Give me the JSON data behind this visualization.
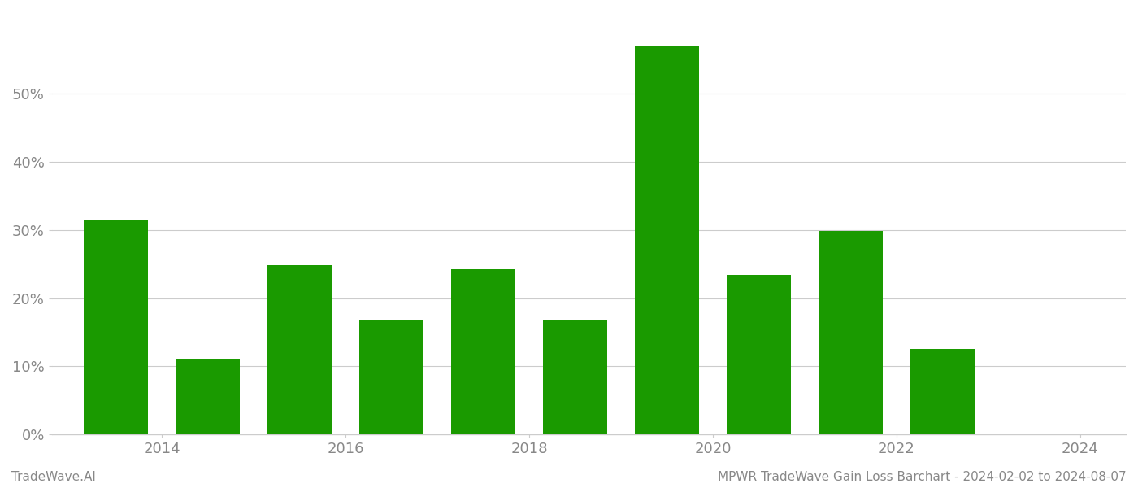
{
  "bar_positions": [
    2013.5,
    2014.5,
    2015.5,
    2016.5,
    2017.5,
    2018.5,
    2019.5,
    2020.5,
    2021.5,
    2022.5
  ],
  "values": [
    0.315,
    0.11,
    0.248,
    0.168,
    0.242,
    0.169,
    0.57,
    0.234,
    0.299,
    0.125
  ],
  "bar_color": "#1a9a00",
  "bar_width": 0.7,
  "xlim": [
    2012.8,
    2024.5
  ],
  "ylim": [
    0,
    0.62
  ],
  "yticks": [
    0.0,
    0.1,
    0.2,
    0.3,
    0.4,
    0.5
  ],
  "xticks": [
    2014,
    2016,
    2018,
    2020,
    2022,
    2024
  ],
  "grid_color": "#cccccc",
  "grid_linewidth": 0.8,
  "tick_label_color": "#888888",
  "tick_fontsize": 13,
  "footer_left": "TradeWave.AI",
  "footer_right": "MPWR TradeWave Gain Loss Barchart - 2024-02-02 to 2024-08-07",
  "footer_fontsize": 11,
  "footer_color": "#888888",
  "background_color": "#ffffff",
  "spine_color": "#cccccc"
}
